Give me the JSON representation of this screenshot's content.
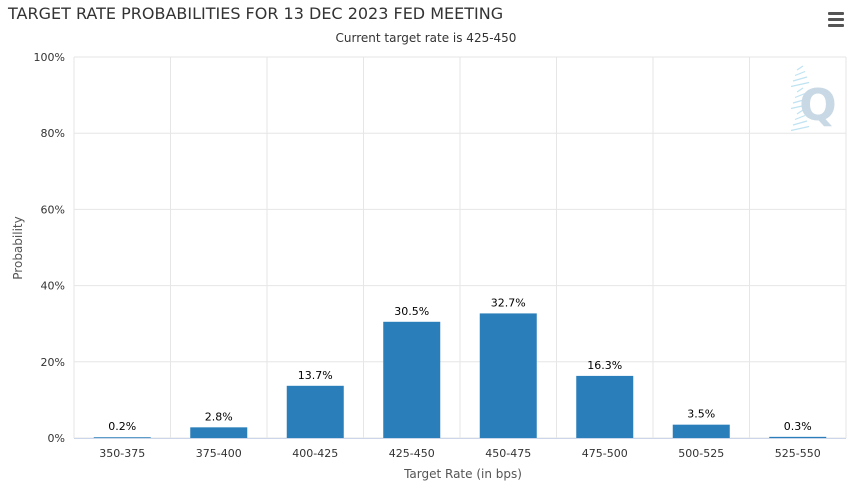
{
  "header": {
    "title": "TARGET RATE PROBABILITIES FOR 13 DEC 2023 FED MEETING",
    "subtitle": "Current target rate is 425-450"
  },
  "colors": {
    "bar": "#2a7fba",
    "grid": "#e6e6e6",
    "watermark": "#c8d8e4"
  },
  "icons": {
    "menu": "hamburger-menu-icon",
    "watermark": "q-logo-watermark"
  },
  "watermark_text": "Q",
  "chart_data": {
    "type": "bar",
    "title": "TARGET RATE PROBABILITIES FOR 13 DEC 2023 FED MEETING",
    "subtitle": "Current target rate is 425-450",
    "xlabel": "Target Rate (in bps)",
    "ylabel": "Probability",
    "categories": [
      "350-375",
      "375-400",
      "400-425",
      "425-450",
      "450-475",
      "475-500",
      "500-525",
      "525-550"
    ],
    "values": [
      0.2,
      2.8,
      13.7,
      30.5,
      32.7,
      16.3,
      3.5,
      0.3
    ],
    "data_labels": [
      "0.2%",
      "2.8%",
      "13.7%",
      "30.5%",
      "32.7%",
      "16.3%",
      "3.5%",
      "0.3%"
    ],
    "ylim": [
      0,
      100
    ],
    "yticks": [
      0,
      20,
      40,
      60,
      80,
      100
    ],
    "ytick_labels": [
      "0%",
      "20%",
      "40%",
      "60%",
      "80%",
      "100%"
    ],
    "grid": true,
    "legend": "none"
  }
}
